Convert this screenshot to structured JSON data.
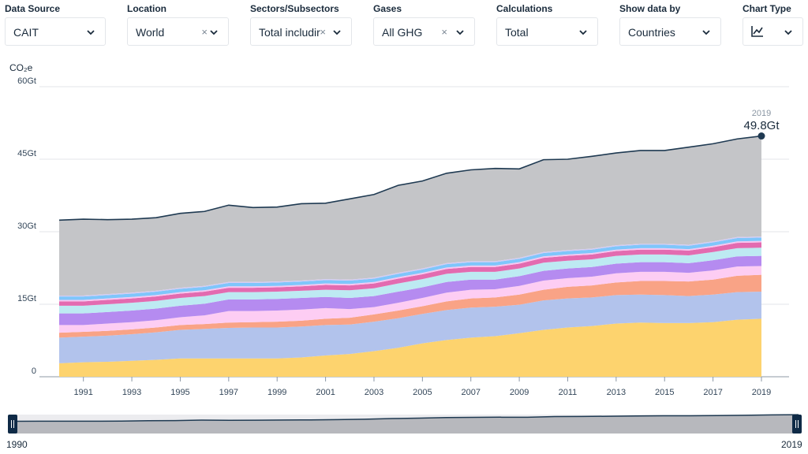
{
  "filters": [
    {
      "label": "Data Source",
      "value": "CAIT",
      "clearable": false
    },
    {
      "label": "Location",
      "value": "World",
      "clearable": true
    },
    {
      "label": "Sectors/Subsectors",
      "value": "Total includir",
      "clearable": true
    },
    {
      "label": "Gases",
      "value": "All GHG",
      "clearable": true
    },
    {
      "label": "Calculations",
      "value": "Total",
      "clearable": false
    },
    {
      "label": "Show data by",
      "value": "Countries",
      "clearable": false
    },
    {
      "label": "Chart Type",
      "value": "",
      "icon": "line-chart-icon",
      "clearable": false
    }
  ],
  "clear_glyph": "×",
  "unit_label": "CO₂e",
  "tooltip": {
    "year": "2019",
    "value": "49.8Gt"
  },
  "range": {
    "start": "1990",
    "end": "2019"
  },
  "colors": {
    "total_line": "#1f3a52",
    "others": "#c4c5c8",
    "bands": [
      "#fdd36e",
      "#b2c3ec",
      "#f9a386",
      "#fdcdf3",
      "#b58bf0",
      "#bdeaf2",
      "#e36bb0",
      "#f7c6f0",
      "#7fc6fb",
      "#d4cbf3"
    ]
  },
  "chart_data": {
    "type": "area",
    "stacked": true,
    "x": [
      1990,
      1991,
      1992,
      1993,
      1994,
      1995,
      1996,
      1997,
      1998,
      1999,
      2000,
      2001,
      2002,
      2003,
      2004,
      2005,
      2006,
      2007,
      2008,
      2009,
      2010,
      2011,
      2012,
      2013,
      2014,
      2015,
      2016,
      2017,
      2018,
      2019
    ],
    "xticks": [
      "1991",
      "1993",
      "1995",
      "1997",
      "1999",
      "2001",
      "2003",
      "2005",
      "2007",
      "2009",
      "2011",
      "2013",
      "2015",
      "2017",
      "2019"
    ],
    "yticks": [
      "0",
      "15Gt",
      "30Gt",
      "45Gt",
      "60Gt"
    ],
    "ylim": [
      0,
      60
    ],
    "ylabel": "CO₂e",
    "grid": true,
    "total": [
      32.4,
      32.6,
      32.5,
      32.6,
      32.9,
      33.8,
      34.2,
      35.5,
      35.0,
      35.1,
      35.8,
      35.9,
      36.8,
      37.7,
      39.6,
      40.5,
      42.1,
      42.8,
      43.1,
      43.0,
      44.9,
      45.0,
      45.6,
      46.3,
      46.8,
      46.8,
      47.5,
      48.2,
      49.2,
      49.8
    ],
    "series": [
      {
        "values": [
          2.8,
          3.0,
          3.1,
          3.3,
          3.5,
          3.8,
          3.8,
          3.8,
          3.8,
          3.8,
          4.0,
          4.4,
          4.7,
          5.3,
          6.0,
          6.9,
          7.6,
          8.1,
          8.4,
          9.0,
          9.7,
          10.2,
          10.5,
          11.0,
          11.2,
          11.1,
          11.1,
          11.3,
          11.8,
          12.0
        ]
      },
      {
        "values": [
          5.3,
          5.3,
          5.4,
          5.5,
          5.7,
          5.9,
          6.1,
          6.3,
          6.4,
          6.4,
          6.4,
          6.3,
          6.1,
          6.1,
          6.1,
          6.1,
          6.2,
          6.2,
          6.1,
          5.9,
          6.1,
          6.0,
          5.9,
          5.9,
          5.8,
          5.8,
          5.6,
          5.7,
          5.7,
          5.6
        ]
      },
      {
        "values": [
          1.0,
          1.0,
          1.0,
          1.0,
          1.0,
          1.0,
          1.0,
          1.1,
          1.1,
          1.2,
          1.2,
          1.3,
          1.4,
          1.5,
          1.6,
          1.6,
          1.8,
          1.9,
          1.9,
          2.1,
          2.2,
          2.4,
          2.5,
          2.6,
          2.8,
          2.9,
          3.0,
          3.1,
          3.4,
          3.5
        ]
      },
      {
        "values": [
          1.6,
          1.4,
          1.5,
          1.5,
          1.5,
          1.6,
          1.8,
          2.4,
          2.3,
          2.3,
          2.3,
          2.2,
          1.8,
          1.5,
          1.6,
          1.7,
          1.8,
          1.8,
          1.7,
          1.8,
          1.9,
          1.8,
          1.8,
          1.9,
          1.9,
          1.9,
          1.8,
          1.9,
          1.9,
          1.8
        ]
      },
      {
        "values": [
          2.4,
          2.4,
          2.4,
          2.4,
          2.4,
          2.4,
          2.4,
          2.4,
          2.4,
          2.4,
          2.4,
          2.3,
          2.3,
          2.3,
          2.3,
          2.2,
          2.2,
          2.1,
          2.0,
          2.0,
          2.0,
          2.0,
          2.0,
          2.0,
          2.0,
          2.0,
          2.0,
          2.1,
          2.1,
          2.1
        ]
      },
      {
        "values": [
          1.6,
          1.6,
          1.6,
          1.6,
          1.6,
          1.6,
          1.6,
          1.5,
          1.5,
          1.5,
          1.5,
          1.5,
          1.6,
          1.6,
          1.7,
          1.7,
          1.7,
          1.6,
          1.6,
          1.6,
          1.7,
          1.6,
          1.6,
          1.6,
          1.6,
          1.6,
          1.6,
          1.7,
          1.7,
          1.7
        ]
      },
      {
        "values": [
          0.9,
          0.9,
          0.9,
          0.9,
          0.9,
          0.9,
          0.9,
          0.9,
          0.9,
          0.9,
          0.9,
          1.0,
          1.0,
          1.0,
          1.0,
          1.0,
          1.0,
          1.0,
          1.0,
          1.0,
          1.0,
          1.0,
          1.0,
          1.0,
          1.0,
          1.0,
          1.0,
          1.0,
          1.1,
          1.1
        ]
      },
      {
        "values": [
          0.3,
          0.3,
          0.3,
          0.3,
          0.3,
          0.3,
          0.3,
          0.3,
          0.3,
          0.3,
          0.3,
          0.3,
          0.3,
          0.3,
          0.3,
          0.3,
          0.3,
          0.3,
          0.3,
          0.3,
          0.3,
          0.3,
          0.3,
          0.3,
          0.3,
          0.3,
          0.3,
          0.3,
          0.3,
          0.3
        ]
      },
      {
        "values": [
          0.7,
          0.7,
          0.7,
          0.7,
          0.7,
          0.7,
          0.7,
          0.7,
          0.7,
          0.7,
          0.7,
          0.7,
          0.7,
          0.7,
          0.7,
          0.7,
          0.7,
          0.7,
          0.7,
          0.7,
          0.7,
          0.7,
          0.7,
          0.7,
          0.7,
          0.7,
          0.7,
          0.7,
          0.7,
          0.7
        ]
      },
      {
        "values": [
          0.2,
          0.2,
          0.2,
          0.2,
          0.2,
          0.2,
          0.2,
          0.2,
          0.2,
          0.2,
          0.2,
          0.2,
          0.2,
          0.2,
          0.2,
          0.2,
          0.2,
          0.2,
          0.2,
          0.2,
          0.2,
          0.2,
          0.2,
          0.2,
          0.2,
          0.2,
          0.2,
          0.2,
          0.2,
          0.2
        ]
      }
    ]
  }
}
